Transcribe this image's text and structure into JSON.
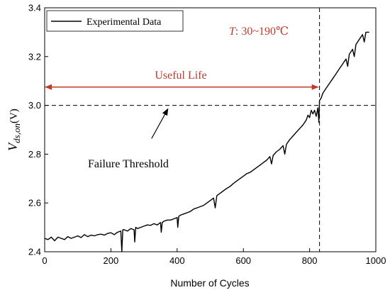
{
  "chart_data": {
    "type": "line",
    "xlabel": "Number of Cycles",
    "ylabel_main": "V",
    "ylabel_sub": "ds,on",
    "ylabel_unit": "(V)",
    "xlim": [
      0,
      1000
    ],
    "ylim": [
      2.4,
      3.4
    ],
    "xticks": [
      0,
      200,
      400,
      600,
      800,
      1000
    ],
    "yticks": [
      2.4,
      2.6,
      2.8,
      3.0,
      3.2,
      3.4
    ],
    "ytick_labels": [
      "2.4",
      "2.6",
      "2.8",
      "3.0",
      "3.2",
      "3.4"
    ],
    "grid": false,
    "legend": {
      "position": "top-left",
      "entries": [
        "Experimental Data"
      ]
    },
    "series": [
      {
        "name": "Experimental Data",
        "color": "#000000",
        "x": [
          0,
          10,
          20,
          30,
          40,
          50,
          60,
          70,
          80,
          90,
          100,
          110,
          120,
          130,
          140,
          150,
          160,
          170,
          180,
          190,
          200,
          210,
          220,
          230,
          233,
          236,
          240,
          250,
          260,
          270,
          272,
          275,
          280,
          290,
          300,
          310,
          320,
          330,
          340,
          350,
          352,
          355,
          360,
          370,
          380,
          390,
          400,
          402,
          405,
          410,
          420,
          430,
          440,
          450,
          460,
          470,
          480,
          490,
          500,
          510,
          515,
          520,
          530,
          540,
          550,
          560,
          570,
          580,
          590,
          600,
          610,
          620,
          630,
          640,
          650,
          660,
          670,
          680,
          685,
          690,
          700,
          710,
          720,
          725,
          730,
          740,
          750,
          760,
          770,
          780,
          790,
          795,
          800,
          805,
          810,
          815,
          820,
          825,
          828,
          830,
          835,
          840,
          850,
          860,
          870,
          880,
          890,
          900,
          910,
          915,
          920,
          930,
          935,
          940,
          950,
          960,
          965,
          970,
          980
        ],
        "values": [
          2.455,
          2.45,
          2.46,
          2.445,
          2.46,
          2.455,
          2.45,
          2.462,
          2.455,
          2.46,
          2.465,
          2.458,
          2.47,
          2.462,
          2.468,
          2.465,
          2.47,
          2.472,
          2.468,
          2.475,
          2.478,
          2.47,
          2.48,
          2.485,
          2.4,
          2.49,
          2.49,
          2.485,
          2.495,
          2.49,
          2.44,
          2.5,
          2.495,
          2.5,
          2.505,
          2.51,
          2.508,
          2.515,
          2.51,
          2.52,
          2.48,
          2.52,
          2.525,
          2.53,
          2.53,
          2.535,
          2.54,
          2.5,
          2.545,
          2.55,
          2.555,
          2.56,
          2.565,
          2.575,
          2.58,
          2.585,
          2.59,
          2.6,
          2.61,
          2.62,
          2.58,
          2.63,
          2.64,
          2.65,
          2.66,
          2.668,
          2.68,
          2.69,
          2.7,
          2.71,
          2.72,
          2.725,
          2.735,
          2.745,
          2.755,
          2.765,
          2.775,
          2.79,
          2.76,
          2.795,
          2.81,
          2.82,
          2.835,
          2.8,
          2.84,
          2.86,
          2.875,
          2.89,
          2.905,
          2.92,
          2.94,
          2.96,
          2.95,
          2.98,
          2.965,
          2.98,
          2.955,
          2.99,
          2.93,
          3.02,
          3.03,
          3.05,
          3.07,
          3.09,
          3.11,
          3.13,
          3.15,
          3.17,
          3.19,
          3.16,
          3.21,
          3.23,
          3.2,
          3.25,
          3.27,
          3.29,
          3.26,
          3.3,
          3.3
        ]
      }
    ],
    "annotations": {
      "temperature_label_prefix": "T",
      "temperature_label_rest": ": 30~190℃",
      "useful_life_label": "Useful Life",
      "failure_threshold_label": "Failure Threshold",
      "threshold_value": 3.0,
      "end_of_life_cycle": 830,
      "useful_life_y": 3.075,
      "arrow_tail": [
        370,
        2.835
      ],
      "arrow_head": [
        445,
        2.98
      ],
      "accent_color": "#c0392b"
    }
  }
}
